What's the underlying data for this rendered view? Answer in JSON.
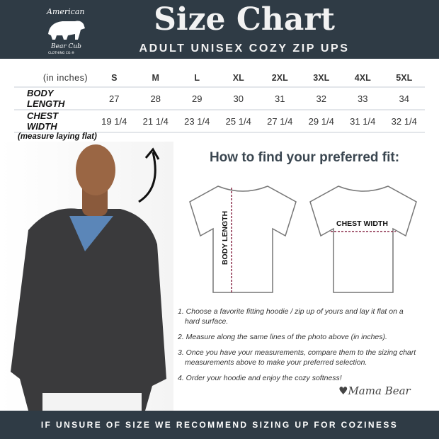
{
  "brand": {
    "logo_text": "American Bear Cub Clothing Co."
  },
  "header": {
    "title": "Size Chart",
    "subtitle": "ADULT UNISEX COZY ZIP UPS"
  },
  "table": {
    "unit_label": "(in inches)",
    "sizes": [
      "S",
      "M",
      "L",
      "XL",
      "2XL",
      "3XL",
      "4XL",
      "5XL"
    ],
    "rows": [
      {
        "label": "BODY LENGTH",
        "values": [
          "27",
          "28",
          "29",
          "30",
          "31",
          "32",
          "33",
          "34"
        ]
      },
      {
        "label": "CHEST WIDTH",
        "values": [
          "19 1/4",
          "21 1/4",
          "23 1/4",
          "25 1/4",
          "27 1/4",
          "29 1/4",
          "31 1/4",
          "32 1/4"
        ]
      }
    ],
    "caption": "(measure laying flat)"
  },
  "guide": {
    "title": "How to find your preferred fit:",
    "body_length_label": "BODY LENGTH",
    "chest_width_label": "CHEST WIDTH",
    "steps": [
      "1. Choose a favorite fitting hoodie  / zip up of yours and lay it flat on a hard surface.",
      "2. Measure along the same lines of the photo above (in inches).",
      "3. Once you have your measurements, compare them to the sizing chart measurements above to make your preferred selection.",
      "4. Order your hoodie and enjoy the cozy softness!"
    ],
    "signature": "♥Mama Bear"
  },
  "footer": {
    "text": "IF UNSURE OF SIZE WE RECOMMEND SIZING UP FOR COZINESS"
  },
  "colors": {
    "banner": "#2f3b45",
    "measure_line": "#8a2d4a"
  }
}
